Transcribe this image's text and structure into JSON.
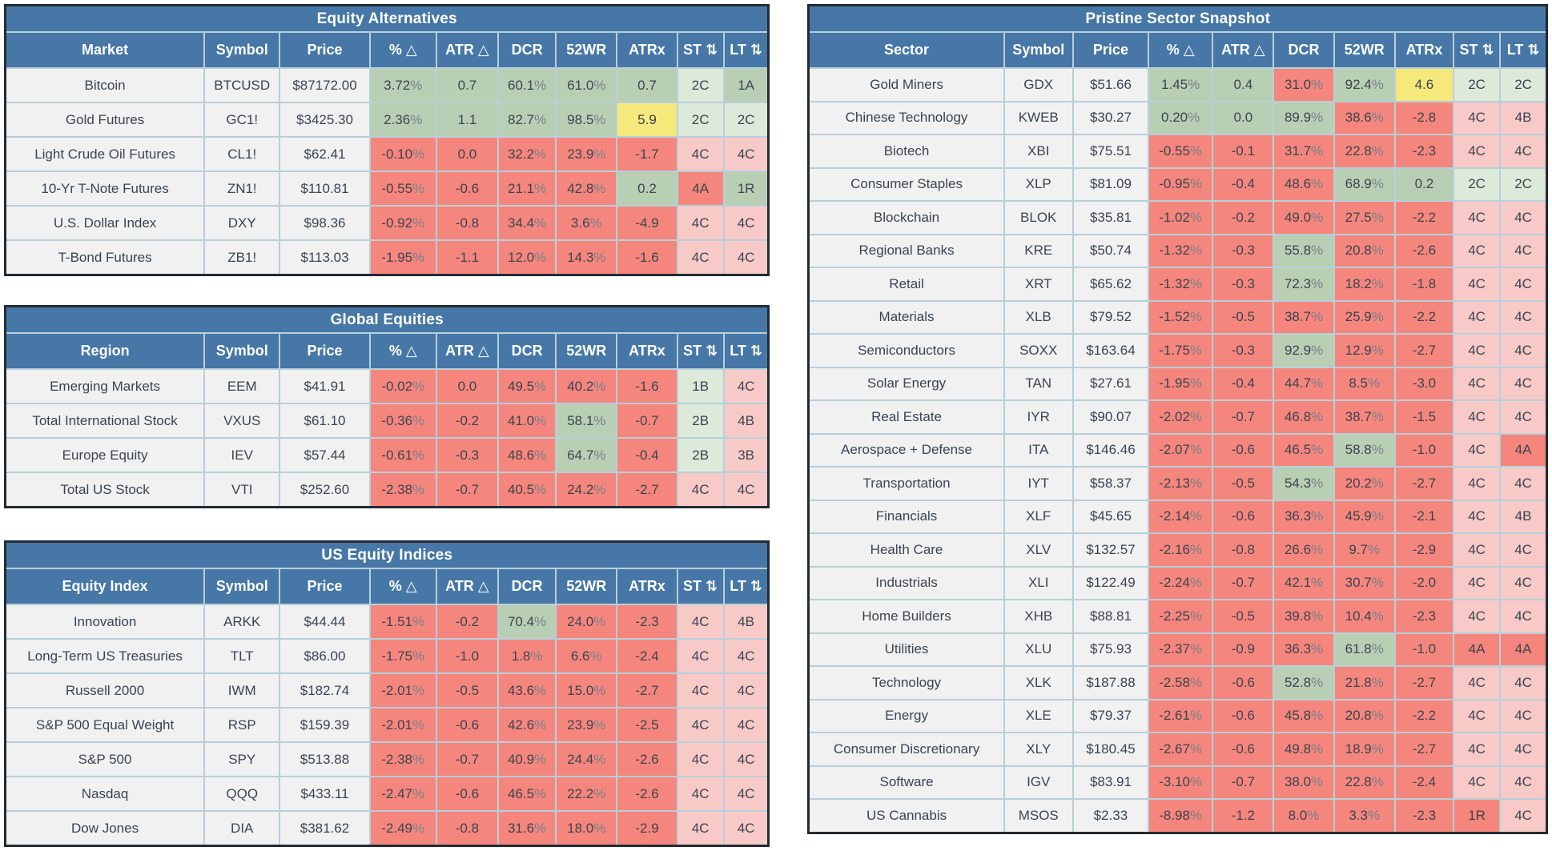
{
  "colors": {
    "header_blue": "#4677a6",
    "green": "#b9cfb4",
    "pale_green": "#dde9d9",
    "red_salmon": "#f5867d",
    "pale_red": "#f8cac7",
    "yellow": "#f5e97b",
    "row_bg": "#f1f1f2",
    "grid_line": "#b7cfda",
    "outer_border": "#232b33",
    "text_dark": "#3b4450",
    "header_text": "#ffffff"
  },
  "legend": {
    "color_codes": {
      "g": "green",
      "lg": "pale-green",
      "r": "red",
      "lr": "pale-red",
      "y": "yellow"
    }
  },
  "columns": [
    "Symbol",
    "Price",
    "% △",
    "ATR △",
    "DCR",
    "52WR",
    "ATRx",
    "ST ⇅",
    "LT ⇅"
  ],
  "tables": [
    {
      "title": "Equity Alternatives",
      "first_col": "Market",
      "rows": [
        {
          "name": "Bitcoin",
          "symbol": "BTCUSD",
          "price": "$87172.00",
          "vals": [
            "3.72%",
            "0.7",
            "60.1%",
            "61.0%",
            "0.7",
            "2C",
            "1A"
          ],
          "cols": [
            "g",
            "g",
            "g",
            "g",
            "g",
            "lg",
            "g"
          ]
        },
        {
          "name": "Gold Futures",
          "symbol": "GC1!",
          "price": "$3425.30",
          "vals": [
            "2.36%",
            "1.1",
            "82.7%",
            "98.5%",
            "5.9",
            "2C",
            "2C"
          ],
          "cols": [
            "g",
            "g",
            "g",
            "g",
            "y",
            "lg",
            "lg"
          ]
        },
        {
          "name": "Light Crude Oil Futures",
          "symbol": "CL1!",
          "price": "$62.41",
          "vals": [
            "-0.10%",
            "0.0",
            "32.2%",
            "23.9%",
            "-1.7",
            "4C",
            "4C"
          ],
          "cols": [
            "r",
            "r",
            "r",
            "r",
            "r",
            "lr",
            "lr"
          ]
        },
        {
          "name": "10-Yr T-Note Futures",
          "symbol": "ZN1!",
          "price": "$110.81",
          "vals": [
            "-0.55%",
            "-0.6",
            "21.1%",
            "42.8%",
            "0.2",
            "4A",
            "1R"
          ],
          "cols": [
            "r",
            "r",
            "r",
            "r",
            "g",
            "r",
            "g"
          ]
        },
        {
          "name": "U.S. Dollar Index",
          "symbol": "DXY",
          "price": "$98.36",
          "vals": [
            "-0.92%",
            "-0.8",
            "34.4%",
            "3.6%",
            "-4.9",
            "4C",
            "4C"
          ],
          "cols": [
            "r",
            "r",
            "r",
            "r",
            "r",
            "lr",
            "lr"
          ]
        },
        {
          "name": "T-Bond Futures",
          "symbol": "ZB1!",
          "price": "$113.03",
          "vals": [
            "-1.95%",
            "-1.1",
            "12.0%",
            "14.3%",
            "-1.6",
            "4C",
            "4C"
          ],
          "cols": [
            "r",
            "r",
            "r",
            "r",
            "r",
            "lr",
            "lr"
          ]
        }
      ]
    },
    {
      "title": "Global Equities",
      "first_col": "Region",
      "rows": [
        {
          "name": "Emerging Markets",
          "symbol": "EEM",
          "price": "$41.91",
          "vals": [
            "-0.02%",
            "0.0",
            "49.5%",
            "40.2%",
            "-1.6",
            "1B",
            "4C"
          ],
          "cols": [
            "r",
            "r",
            "r",
            "r",
            "r",
            "lg",
            "lr"
          ]
        },
        {
          "name": "Total International Stock",
          "symbol": "VXUS",
          "price": "$61.10",
          "vals": [
            "-0.36%",
            "-0.2",
            "41.0%",
            "58.1%",
            "-0.7",
            "2B",
            "4B"
          ],
          "cols": [
            "r",
            "r",
            "r",
            "g",
            "r",
            "lg",
            "lr"
          ]
        },
        {
          "name": "Europe Equity",
          "symbol": "IEV",
          "price": "$57.44",
          "vals": [
            "-0.61%",
            "-0.3",
            "48.6%",
            "64.7%",
            "-0.4",
            "2B",
            "3B"
          ],
          "cols": [
            "r",
            "r",
            "r",
            "g",
            "r",
            "lg",
            "lr"
          ]
        },
        {
          "name": "Total US Stock",
          "symbol": "VTI",
          "price": "$252.60",
          "vals": [
            "-2.38%",
            "-0.7",
            "40.5%",
            "24.2%",
            "-2.7",
            "4C",
            "4C"
          ],
          "cols": [
            "r",
            "r",
            "r",
            "r",
            "r",
            "lr",
            "lr"
          ]
        }
      ]
    },
    {
      "title": "US Equity Indices",
      "first_col": "Equity Index",
      "rows": [
        {
          "name": "Innovation",
          "symbol": "ARKK",
          "price": "$44.44",
          "vals": [
            "-1.51%",
            "-0.2",
            "70.4%",
            "24.0%",
            "-2.3",
            "4C",
            "4B"
          ],
          "cols": [
            "r",
            "r",
            "g",
            "r",
            "r",
            "lr",
            "lr"
          ]
        },
        {
          "name": "Long-Term US Treasuries",
          "symbol": "TLT",
          "price": "$86.00",
          "vals": [
            "-1.75%",
            "-1.0",
            "1.8%",
            "6.6%",
            "-2.4",
            "4C",
            "4C"
          ],
          "cols": [
            "r",
            "r",
            "r",
            "r",
            "r",
            "lr",
            "lr"
          ]
        },
        {
          "name": "Russell 2000",
          "symbol": "IWM",
          "price": "$182.74",
          "vals": [
            "-2.01%",
            "-0.5",
            "43.6%",
            "15.0%",
            "-2.7",
            "4C",
            "4C"
          ],
          "cols": [
            "r",
            "r",
            "r",
            "r",
            "r",
            "lr",
            "lr"
          ]
        },
        {
          "name": "S&P 500 Equal Weight",
          "symbol": "RSP",
          "price": "$159.39",
          "vals": [
            "-2.01%",
            "-0.6",
            "42.6%",
            "23.9%",
            "-2.5",
            "4C",
            "4C"
          ],
          "cols": [
            "r",
            "r",
            "r",
            "r",
            "r",
            "lr",
            "lr"
          ]
        },
        {
          "name": "S&P 500",
          "symbol": "SPY",
          "price": "$513.88",
          "vals": [
            "-2.38%",
            "-0.7",
            "40.9%",
            "24.4%",
            "-2.6",
            "4C",
            "4C"
          ],
          "cols": [
            "r",
            "r",
            "r",
            "r",
            "r",
            "lr",
            "lr"
          ]
        },
        {
          "name": "Nasdaq",
          "symbol": "QQQ",
          "price": "$433.11",
          "vals": [
            "-2.47%",
            "-0.6",
            "46.5%",
            "22.2%",
            "-2.6",
            "4C",
            "4C"
          ],
          "cols": [
            "r",
            "r",
            "r",
            "r",
            "r",
            "lr",
            "lr"
          ]
        },
        {
          "name": "Dow Jones",
          "symbol": "DIA",
          "price": "$381.62",
          "vals": [
            "-2.49%",
            "-0.8",
            "31.6%",
            "18.0%",
            "-2.9",
            "4C",
            "4C"
          ],
          "cols": [
            "r",
            "r",
            "r",
            "r",
            "r",
            "lr",
            "lr"
          ]
        }
      ]
    },
    {
      "title": "Pristine Sector Snapshot",
      "first_col": "Sector",
      "rows": [
        {
          "name": "Gold Miners",
          "symbol": "GDX",
          "price": "$51.66",
          "vals": [
            "1.45%",
            "0.4",
            "31.0%",
            "92.4%",
            "4.6",
            "2C",
            "2C"
          ],
          "cols": [
            "g",
            "g",
            "r",
            "g",
            "y",
            "lg",
            "lg"
          ]
        },
        {
          "name": "Chinese Technology",
          "symbol": "KWEB",
          "price": "$30.27",
          "vals": [
            "0.20%",
            "0.0",
            "89.9%",
            "38.6%",
            "-2.8",
            "4C",
            "4B"
          ],
          "cols": [
            "g",
            "g",
            "g",
            "r",
            "r",
            "lr",
            "lr"
          ]
        },
        {
          "name": "Biotech",
          "symbol": "XBI",
          "price": "$75.51",
          "vals": [
            "-0.55%",
            "-0.1",
            "31.7%",
            "22.8%",
            "-2.3",
            "4C",
            "4C"
          ],
          "cols": [
            "r",
            "r",
            "r",
            "r",
            "r",
            "lr",
            "lr"
          ]
        },
        {
          "name": "Consumer Staples",
          "symbol": "XLP",
          "price": "$81.09",
          "vals": [
            "-0.95%",
            "-0.4",
            "48.6%",
            "68.9%",
            "0.2",
            "2C",
            "2C"
          ],
          "cols": [
            "r",
            "r",
            "r",
            "g",
            "g",
            "lg",
            "lg"
          ]
        },
        {
          "name": "Blockchain",
          "symbol": "BLOK",
          "price": "$35.81",
          "vals": [
            "-1.02%",
            "-0.2",
            "49.0%",
            "27.5%",
            "-2.2",
            "4C",
            "4C"
          ],
          "cols": [
            "r",
            "r",
            "r",
            "r",
            "r",
            "lr",
            "lr"
          ]
        },
        {
          "name": "Regional Banks",
          "symbol": "KRE",
          "price": "$50.74",
          "vals": [
            "-1.32%",
            "-0.3",
            "55.8%",
            "20.8%",
            "-2.6",
            "4C",
            "4C"
          ],
          "cols": [
            "r",
            "r",
            "g",
            "r",
            "r",
            "lr",
            "lr"
          ]
        },
        {
          "name": "Retail",
          "symbol": "XRT",
          "price": "$65.62",
          "vals": [
            "-1.32%",
            "-0.3",
            "72.3%",
            "18.2%",
            "-1.8",
            "4C",
            "4C"
          ],
          "cols": [
            "r",
            "r",
            "g",
            "r",
            "r",
            "lr",
            "lr"
          ]
        },
        {
          "name": "Materials",
          "symbol": "XLB",
          "price": "$79.52",
          "vals": [
            "-1.52%",
            "-0.5",
            "38.7%",
            "25.9%",
            "-2.2",
            "4C",
            "4C"
          ],
          "cols": [
            "r",
            "r",
            "r",
            "r",
            "r",
            "lr",
            "lr"
          ]
        },
        {
          "name": "Semiconductors",
          "symbol": "SOXX",
          "price": "$163.64",
          "vals": [
            "-1.75%",
            "-0.3",
            "92.9%",
            "12.9%",
            "-2.7",
            "4C",
            "4C"
          ],
          "cols": [
            "r",
            "r",
            "g",
            "r",
            "r",
            "lr",
            "lr"
          ]
        },
        {
          "name": "Solar Energy",
          "symbol": "TAN",
          "price": "$27.61",
          "vals": [
            "-1.95%",
            "-0.4",
            "44.7%",
            "8.5%",
            "-3.0",
            "4C",
            "4C"
          ],
          "cols": [
            "r",
            "r",
            "r",
            "r",
            "r",
            "lr",
            "lr"
          ]
        },
        {
          "name": "Real Estate",
          "symbol": "IYR",
          "price": "$90.07",
          "vals": [
            "-2.02%",
            "-0.7",
            "46.8%",
            "38.7%",
            "-1.5",
            "4C",
            "4C"
          ],
          "cols": [
            "r",
            "r",
            "r",
            "r",
            "r",
            "lr",
            "lr"
          ]
        },
        {
          "name": "Aerospace + Defense",
          "symbol": "ITA",
          "price": "$146.46",
          "vals": [
            "-2.07%",
            "-0.6",
            "46.5%",
            "58.8%",
            "-1.0",
            "4C",
            "4A"
          ],
          "cols": [
            "r",
            "r",
            "r",
            "g",
            "r",
            "lr",
            "r"
          ]
        },
        {
          "name": "Transportation",
          "symbol": "IYT",
          "price": "$58.37",
          "vals": [
            "-2.13%",
            "-0.5",
            "54.3%",
            "20.2%",
            "-2.7",
            "4C",
            "4C"
          ],
          "cols": [
            "r",
            "r",
            "g",
            "r",
            "r",
            "lr",
            "lr"
          ]
        },
        {
          "name": "Financials",
          "symbol": "XLF",
          "price": "$45.65",
          "vals": [
            "-2.14%",
            "-0.6",
            "36.3%",
            "45.9%",
            "-2.1",
            "4C",
            "4B"
          ],
          "cols": [
            "r",
            "r",
            "r",
            "r",
            "r",
            "lr",
            "lr"
          ]
        },
        {
          "name": "Health Care",
          "symbol": "XLV",
          "price": "$132.57",
          "vals": [
            "-2.16%",
            "-0.8",
            "26.6%",
            "9.7%",
            "-2.9",
            "4C",
            "4C"
          ],
          "cols": [
            "r",
            "r",
            "r",
            "r",
            "r",
            "lr",
            "lr"
          ]
        },
        {
          "name": "Industrials",
          "symbol": "XLI",
          "price": "$122.49",
          "vals": [
            "-2.24%",
            "-0.7",
            "42.1%",
            "30.7%",
            "-2.0",
            "4C",
            "4C"
          ],
          "cols": [
            "r",
            "r",
            "r",
            "r",
            "r",
            "lr",
            "lr"
          ]
        },
        {
          "name": "Home Builders",
          "symbol": "XHB",
          "price": "$88.81",
          "vals": [
            "-2.25%",
            "-0.5",
            "39.8%",
            "10.4%",
            "-2.3",
            "4C",
            "4C"
          ],
          "cols": [
            "r",
            "r",
            "r",
            "r",
            "r",
            "lr",
            "lr"
          ]
        },
        {
          "name": "Utilities",
          "symbol": "XLU",
          "price": "$75.93",
          "vals": [
            "-2.37%",
            "-0.9",
            "36.3%",
            "61.8%",
            "-1.0",
            "4A",
            "4A"
          ],
          "cols": [
            "r",
            "r",
            "r",
            "g",
            "r",
            "r",
            "r"
          ]
        },
        {
          "name": "Technology",
          "symbol": "XLK",
          "price": "$187.88",
          "vals": [
            "-2.58%",
            "-0.6",
            "52.8%",
            "21.8%",
            "-2.7",
            "4C",
            "4C"
          ],
          "cols": [
            "r",
            "r",
            "g",
            "r",
            "r",
            "lr",
            "lr"
          ]
        },
        {
          "name": "Energy",
          "symbol": "XLE",
          "price": "$79.37",
          "vals": [
            "-2.61%",
            "-0.6",
            "45.8%",
            "20.8%",
            "-2.2",
            "4C",
            "4C"
          ],
          "cols": [
            "r",
            "r",
            "r",
            "r",
            "r",
            "lr",
            "lr"
          ]
        },
        {
          "name": "Consumer Discretionary",
          "symbol": "XLY",
          "price": "$180.45",
          "vals": [
            "-2.67%",
            "-0.6",
            "49.8%",
            "18.9%",
            "-2.7",
            "4C",
            "4C"
          ],
          "cols": [
            "r",
            "r",
            "r",
            "r",
            "r",
            "lr",
            "lr"
          ]
        },
        {
          "name": "Software",
          "symbol": "IGV",
          "price": "$83.91",
          "vals": [
            "-3.10%",
            "-0.7",
            "38.0%",
            "22.8%",
            "-2.4",
            "4C",
            "4C"
          ],
          "cols": [
            "r",
            "r",
            "r",
            "r",
            "r",
            "lr",
            "lr"
          ]
        },
        {
          "name": "US Cannabis",
          "symbol": "MSOS",
          "price": "$2.33",
          "vals": [
            "-8.98%",
            "-1.2",
            "8.0%",
            "3.3%",
            "-2.3",
            "1R",
            "4C"
          ],
          "cols": [
            "r",
            "r",
            "r",
            "r",
            "r",
            "r",
            "lr"
          ]
        }
      ]
    }
  ]
}
